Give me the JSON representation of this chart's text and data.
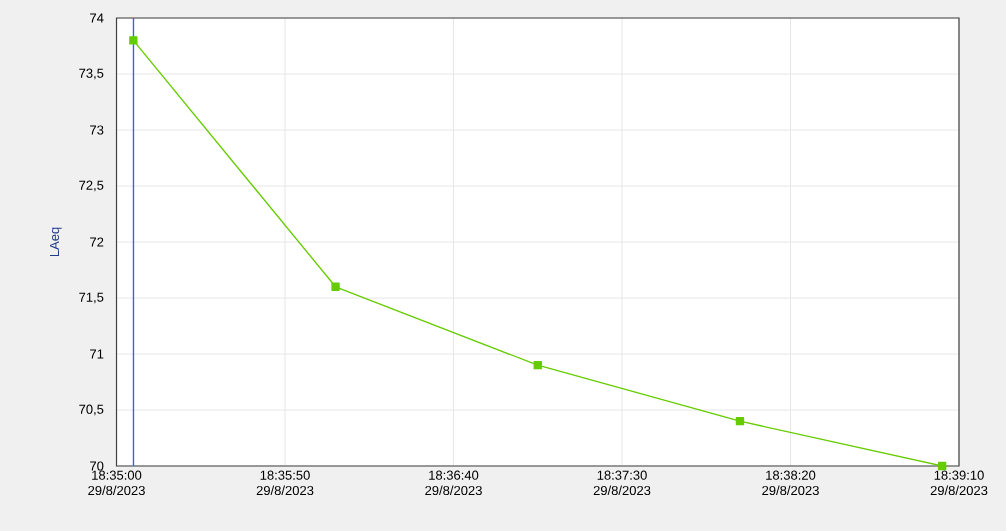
{
  "chart_data": {
    "type": "line",
    "ylabel": "LAeq",
    "x": [
      "2023-08-29T18:35:05",
      "2023-08-29T18:36:05",
      "2023-08-29T18:37:05",
      "2023-08-29T18:38:05",
      "2023-08-29T18:39:05"
    ],
    "series": [
      {
        "color": "#66cc00",
        "values": [
          73.8,
          71.6,
          70.9,
          70.4,
          70.0
        ]
      }
    ],
    "xlim": [
      "2023-08-29T18:35:00",
      "2023-08-29T18:39:10"
    ],
    "xticks": [
      {
        "value": "2023-08-29T18:35:00",
        "label": "18:35:00 29/8/2023"
      },
      {
        "value": "2023-08-29T18:35:50",
        "label": "18:35:50 29/8/2023"
      },
      {
        "value": "2023-08-29T18:36:40",
        "label": "18:36:40 29/8/2023"
      },
      {
        "value": "2023-08-29T18:37:30",
        "label": "18:37:30 29/8/2023"
      },
      {
        "value": "2023-08-29T18:38:20",
        "label": "18:38:20 29/8/2023"
      },
      {
        "value": "2023-08-29T18:39:10",
        "label": "18:39:10 29/8/2023"
      }
    ],
    "ylim": [
      70,
      74
    ],
    "yticks": [
      70,
      {
        "value": 70.5,
        "label": "70,5"
      },
      71,
      {
        "value": 71.5,
        "label": "71,5"
      },
      72,
      {
        "value": 72.5,
        "label": "72,5"
      },
      73,
      {
        "value": 73.5,
        "label": "73,5"
      },
      74
    ],
    "ref_lines": [
      {
        "axis": "x",
        "value": "2023-08-29T18:35:05",
        "color": "#3366dd"
      }
    ],
    "grid": true,
    "marker": "square",
    "line_style": "solid"
  }
}
